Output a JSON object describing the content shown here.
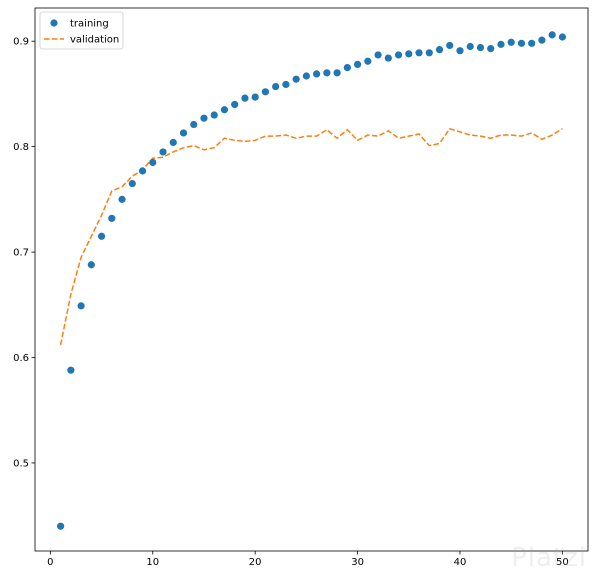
{
  "chart_data": {
    "type": "scatter",
    "xlim": [
      -1.5,
      52.5
    ],
    "ylim": [
      0.4165,
      0.9315
    ],
    "x_ticks": [
      0,
      10,
      20,
      30,
      40,
      50
    ],
    "y_ticks": [
      0.5,
      0.6,
      0.7,
      0.8,
      0.9
    ],
    "grid": false,
    "legend_position": "top-left",
    "series": [
      {
        "name": "training",
        "style": "markers",
        "color": "#1f77b4",
        "x": [
          1,
          2,
          3,
          4,
          5,
          6,
          7,
          8,
          9,
          10,
          11,
          12,
          13,
          14,
          15,
          16,
          17,
          18,
          19,
          20,
          21,
          22,
          23,
          24,
          25,
          26,
          27,
          28,
          29,
          30,
          31,
          32,
          33,
          34,
          35,
          36,
          37,
          38,
          39,
          40,
          41,
          42,
          43,
          44,
          45,
          46,
          47,
          48,
          49,
          50
        ],
        "y": [
          0.44,
          0.588,
          0.649,
          0.688,
          0.715,
          0.732,
          0.75,
          0.765,
          0.777,
          0.785,
          0.795,
          0.804,
          0.813,
          0.821,
          0.827,
          0.83,
          0.835,
          0.84,
          0.846,
          0.847,
          0.852,
          0.857,
          0.859,
          0.864,
          0.867,
          0.869,
          0.87,
          0.87,
          0.875,
          0.878,
          0.881,
          0.887,
          0.884,
          0.887,
          0.888,
          0.889,
          0.889,
          0.892,
          0.896,
          0.891,
          0.895,
          0.894,
          0.893,
          0.897,
          0.899,
          0.898,
          0.898,
          0.901,
          0.906,
          0.904
        ]
      },
      {
        "name": "validation",
        "style": "dashed-line",
        "color": "#ff7f0e",
        "x": [
          1,
          2,
          3,
          4,
          5,
          6,
          7,
          8,
          9,
          10,
          11,
          12,
          13,
          14,
          15,
          16,
          17,
          18,
          19,
          20,
          21,
          22,
          23,
          24,
          25,
          26,
          27,
          28,
          29,
          30,
          31,
          32,
          33,
          34,
          35,
          36,
          37,
          38,
          39,
          40,
          41,
          42,
          43,
          44,
          45,
          46,
          47,
          48,
          49,
          50
        ],
        "y": [
          0.612,
          0.66,
          0.695,
          0.715,
          0.735,
          0.758,
          0.762,
          0.772,
          0.778,
          0.789,
          0.79,
          0.795,
          0.799,
          0.801,
          0.797,
          0.799,
          0.808,
          0.806,
          0.805,
          0.806,
          0.81,
          0.81,
          0.811,
          0.808,
          0.81,
          0.81,
          0.816,
          0.808,
          0.816,
          0.806,
          0.811,
          0.81,
          0.815,
          0.808,
          0.81,
          0.812,
          0.801,
          0.803,
          0.817,
          0.814,
          0.811,
          0.81,
          0.808,
          0.811,
          0.811,
          0.81,
          0.813,
          0.807,
          0.811,
          0.817
        ]
      }
    ]
  },
  "watermark": "Platzi"
}
